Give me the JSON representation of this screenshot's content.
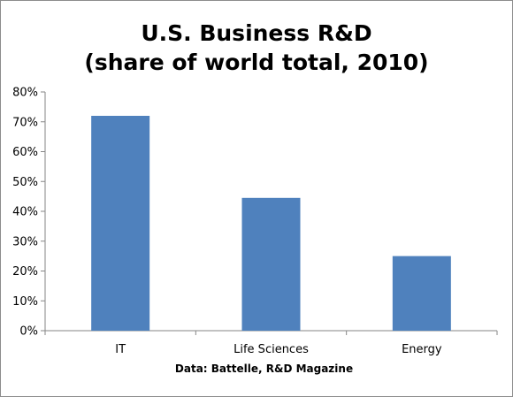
{
  "chart_data": {
    "type": "bar",
    "title_lines": [
      "U.S. Business R&D",
      "(share of world total, 2010)"
    ],
    "categories": [
      "IT",
      "Life Sciences",
      "Energy"
    ],
    "series": [
      {
        "values": [
          72,
          44.5,
          25
        ]
      }
    ],
    "ylim": [
      0,
      80
    ],
    "yticks": [
      "0%",
      "10%",
      "20%",
      "30%",
      "40%",
      "50%",
      "60%",
      "70%",
      "80%"
    ],
    "source": "Data: Battelle, R&D Magazine",
    "bar_color": "#4f81bd",
    "grid": false
  }
}
